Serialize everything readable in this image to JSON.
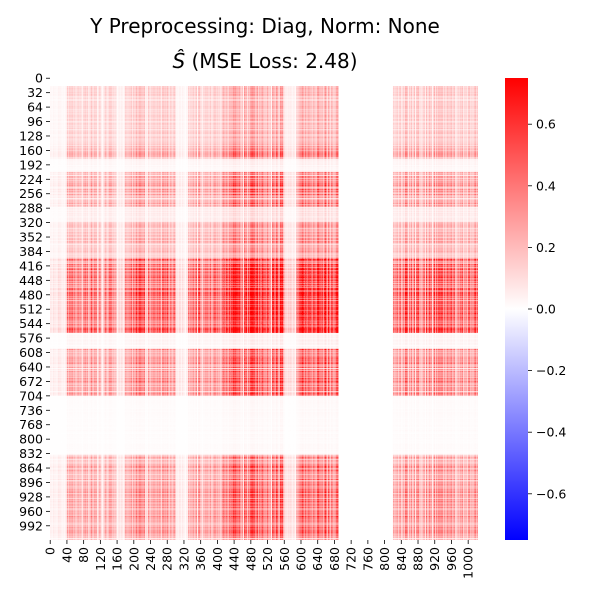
{
  "colors": {
    "positive": "#ff0000",
    "negative": "#0000ff",
    "zero": "#ffffff"
  },
  "chart_data": {
    "type": "heatmap",
    "title_line1": "Y Preprocessing: Diag, Norm: None",
    "title_line2_prefix": "Ŝ",
    "title_line2_rest": " (MSE Loss: 2.48)",
    "matrix_size": 1024,
    "vlim": [
      -0.75,
      0.75
    ],
    "y_tick_labels": [
      "0",
      "32",
      "64",
      "96",
      "128",
      "160",
      "192",
      "224",
      "256",
      "288",
      "320",
      "352",
      "384",
      "416",
      "448",
      "480",
      "512",
      "544",
      "576",
      "608",
      "640",
      "672",
      "704",
      "736",
      "768",
      "800",
      "832",
      "864",
      "896",
      "928",
      "960",
      "992"
    ],
    "x_tick_labels": [
      "0",
      "40",
      "80",
      "120",
      "160",
      "200",
      "240",
      "280",
      "320",
      "360",
      "400",
      "440",
      "480",
      "520",
      "560",
      "600",
      "640",
      "680",
      "720",
      "760",
      "800",
      "840",
      "880",
      "920",
      "960",
      "1000"
    ],
    "colorbar": {
      "ticks": [
        "0.6",
        "0.4",
        "0.2",
        "0.0",
        "−0.2",
        "−0.4",
        "−0.6"
      ],
      "tick_values": [
        0.6,
        0.4,
        0.2,
        0.0,
        -0.2,
        -0.4,
        -0.6
      ]
    },
    "row_activity_bands": [
      {
        "start": 0,
        "end": 18,
        "level": 0.0
      },
      {
        "start": 18,
        "end": 150,
        "level": 0.25
      },
      {
        "start": 150,
        "end": 178,
        "level": 0.45
      },
      {
        "start": 178,
        "end": 208,
        "level": 0.05
      },
      {
        "start": 208,
        "end": 285,
        "level": 0.45
      },
      {
        "start": 285,
        "end": 320,
        "level": 0.1
      },
      {
        "start": 320,
        "end": 400,
        "level": 0.35
      },
      {
        "start": 400,
        "end": 545,
        "level": 0.8
      },
      {
        "start": 545,
        "end": 565,
        "level": 0.9
      },
      {
        "start": 565,
        "end": 600,
        "level": 0.05
      },
      {
        "start": 600,
        "end": 705,
        "level": 0.55
      },
      {
        "start": 705,
        "end": 835,
        "level": 0.02
      },
      {
        "start": 835,
        "end": 880,
        "level": 0.45
      },
      {
        "start": 880,
        "end": 1024,
        "level": 0.5
      }
    ],
    "column_activity_bands": [
      {
        "start": 0,
        "end": 40,
        "level": 0.1
      },
      {
        "start": 40,
        "end": 160,
        "level": 0.45
      },
      {
        "start": 160,
        "end": 180,
        "level": 0.15
      },
      {
        "start": 180,
        "end": 300,
        "level": 0.5
      },
      {
        "start": 300,
        "end": 330,
        "level": 0.1
      },
      {
        "start": 330,
        "end": 410,
        "level": 0.5
      },
      {
        "start": 410,
        "end": 560,
        "level": 0.9
      },
      {
        "start": 560,
        "end": 590,
        "level": 0.2
      },
      {
        "start": 590,
        "end": 690,
        "level": 0.8
      },
      {
        "start": 690,
        "end": 820,
        "level": 0.0
      },
      {
        "start": 820,
        "end": 1024,
        "level": 0.55
      }
    ]
  }
}
